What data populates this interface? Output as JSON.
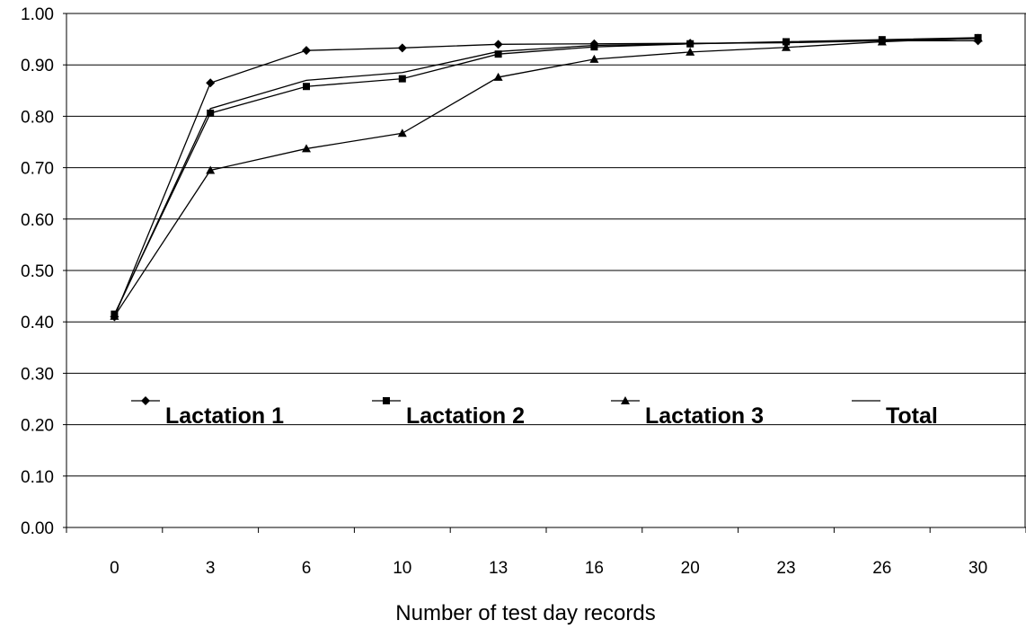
{
  "chart_data": {
    "type": "line",
    "title": "",
    "xlabel": "Number of test day records",
    "ylabel": "",
    "categories": [
      "0",
      "3",
      "6",
      "10",
      "13",
      "16",
      "20",
      "23",
      "26",
      "30"
    ],
    "ylim": [
      0,
      1.0
    ],
    "yticks": [
      "0.00",
      "0.10",
      "0.20",
      "0.30",
      "0.40",
      "0.50",
      "0.60",
      "0.70",
      "0.80",
      "0.90",
      "1.00"
    ],
    "grid": "horizontal",
    "legend_position": "inside-lower-middle",
    "series": [
      {
        "name": "Lactation 1",
        "marker": "diamond",
        "values": [
          0.41,
          0.865,
          0.928,
          0.933,
          0.94,
          0.941,
          0.942,
          0.943,
          0.947,
          0.947
        ]
      },
      {
        "name": "Lactation 2",
        "marker": "square",
        "values": [
          0.415,
          0.806,
          0.858,
          0.873,
          0.921,
          0.935,
          0.941,
          0.945,
          0.949,
          0.953
        ]
      },
      {
        "name": "Lactation 3",
        "marker": "triangle",
        "values": [
          0.411,
          0.695,
          0.737,
          0.767,
          0.876,
          0.911,
          0.925,
          0.934,
          0.945,
          0.952
        ]
      },
      {
        "name": "Total",
        "marker": "none",
        "values": [
          0.413,
          0.815,
          0.87,
          0.885,
          0.926,
          0.938,
          0.941,
          0.944,
          0.948,
          0.951
        ]
      }
    ],
    "colors": {
      "line": "#000000",
      "grid": "#000000",
      "background": "#ffffff"
    }
  }
}
